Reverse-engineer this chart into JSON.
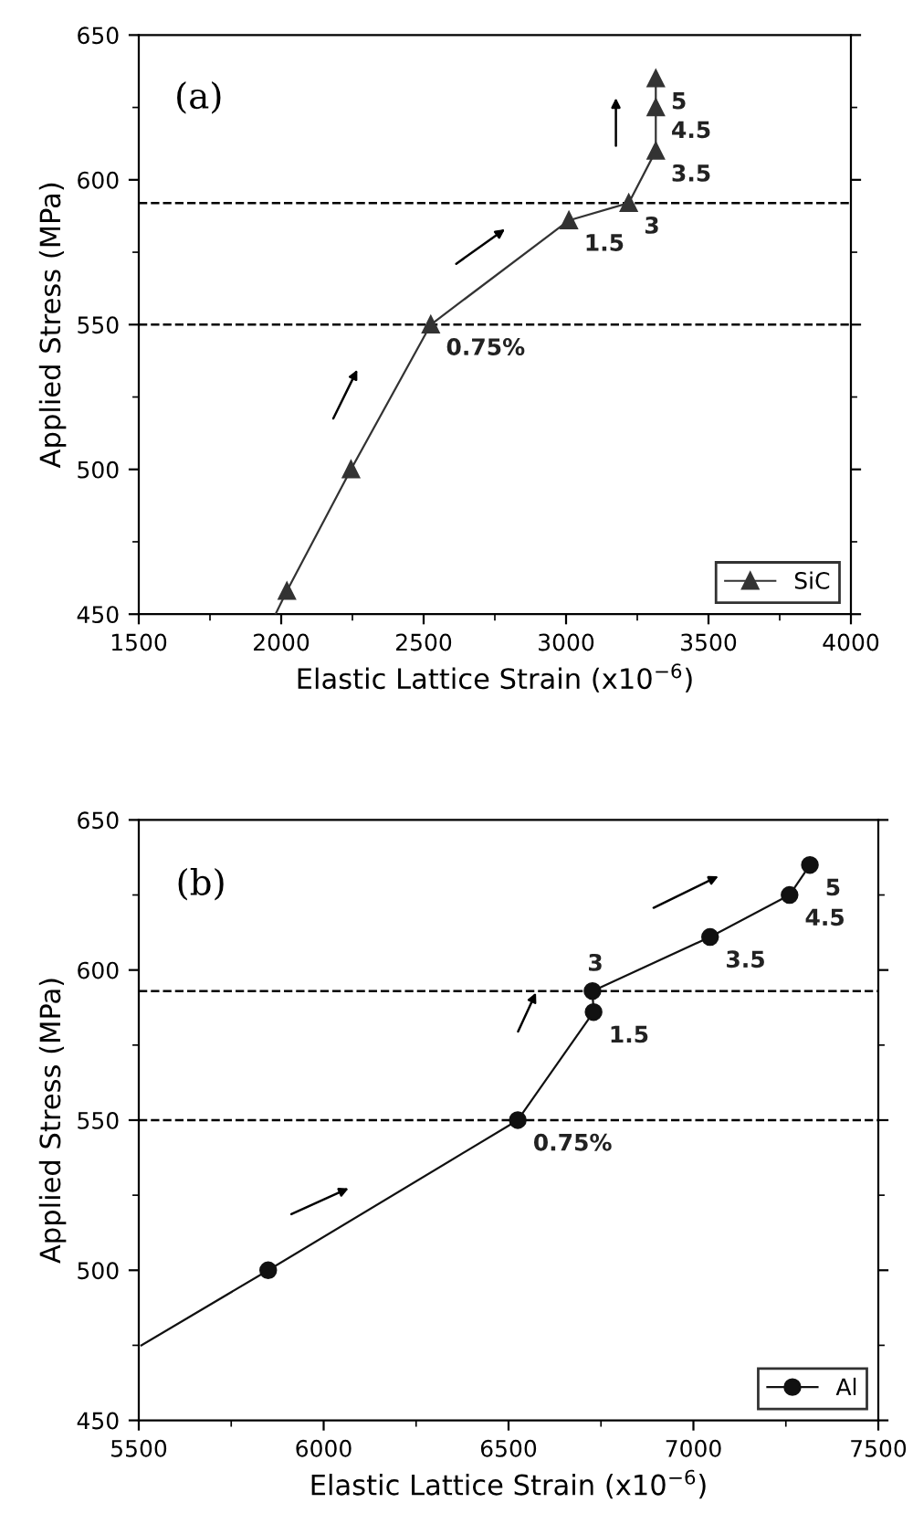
{
  "chart_data": [
    {
      "type": "line",
      "xlabel": "Elastic Lattice Strain (x10$^{−6}$)",
      "ylabel": "Applied Stress (MPa)",
      "xlim": [
        1500,
        4000
      ],
      "ylim": [
        450,
        650
      ],
      "xticks": [
        1500,
        2000,
        2500,
        3000,
        3500,
        4000
      ],
      "yticks": [
        450,
        500,
        550,
        600,
        650
      ],
      "series": [
        {
          "name": "SiC",
          "color": "#333333",
          "marker": "triangle",
          "x": [
            2020,
            2245,
            2525,
            3010,
            3220,
            3315,
            3315,
            3315
          ],
          "values": [
            458,
            500,
            550,
            586,
            592,
            610,
            625,
            635
          ]
        },
        {
          "color": "#333333",
          "marker": "none",
          "x": [
            1980,
            2020
          ],
          "values": [
            450,
            458
          ]
        }
      ],
      "ref_lines": [
        {
          "axis": "y",
          "value": 592,
          "line_style": "dashed"
        },
        {
          "axis": "y",
          "value": 550,
          "line_style": "dashed"
        }
      ],
      "annotations": [
        "(a)",
        {
          "text": "0.75%",
          "x": 2525,
          "y": 550
        },
        {
          "text": "1.5",
          "x": 3010,
          "y": 586
        },
        {
          "text": "3",
          "x": 3220,
          "y": 592
        },
        {
          "text": "3.5",
          "x": 3315,
          "y": 610
        },
        {
          "text": "4.5",
          "x": 3315,
          "y": 625
        },
        {
          "text": "5",
          "x": 3315,
          "y": 635
        }
      ],
      "legend": "bottom right",
      "grid": false
    },
    {
      "type": "line",
      "xlabel": "Elastic Lattice Strain (x10$^{−6}$)",
      "ylabel": "Applied Stress (MPa)",
      "xlim": [
        5500,
        7500
      ],
      "ylim": [
        450,
        650
      ],
      "xticks": [
        5500,
        6000,
        6500,
        7000,
        7500
      ],
      "yticks": [
        450,
        500,
        550,
        600,
        650
      ],
      "series": [
        {
          "name": "Al",
          "color": "#111111",
          "marker": "circle",
          "x": [
            5850,
            6525,
            6730,
            6727,
            7045,
            7260,
            7315
          ],
          "values": [
            500,
            550,
            586,
            593,
            611,
            625,
            635
          ]
        },
        {
          "color": "#111111",
          "marker": "none",
          "x": [
            5507,
            5850
          ],
          "values": [
            475,
            500
          ]
        }
      ],
      "ref_lines": [
        {
          "axis": "y",
          "value": 593,
          "line_style": "dashed"
        },
        {
          "axis": "y",
          "value": 550,
          "line_style": "dashed"
        }
      ],
      "annotations": [
        "(b)",
        {
          "text": "0.75%",
          "x": 6525,
          "y": 550
        },
        {
          "text": "1.5",
          "x": 6730,
          "y": 586
        },
        {
          "text": "3",
          "x": 6727,
          "y": 593
        },
        {
          "text": "3.5",
          "x": 7045,
          "y": 611
        },
        {
          "text": "4.5",
          "x": 7260,
          "y": 625
        },
        {
          "text": "5",
          "x": 7315,
          "y": 635
        }
      ],
      "legend": "bottom right",
      "grid": false
    }
  ]
}
